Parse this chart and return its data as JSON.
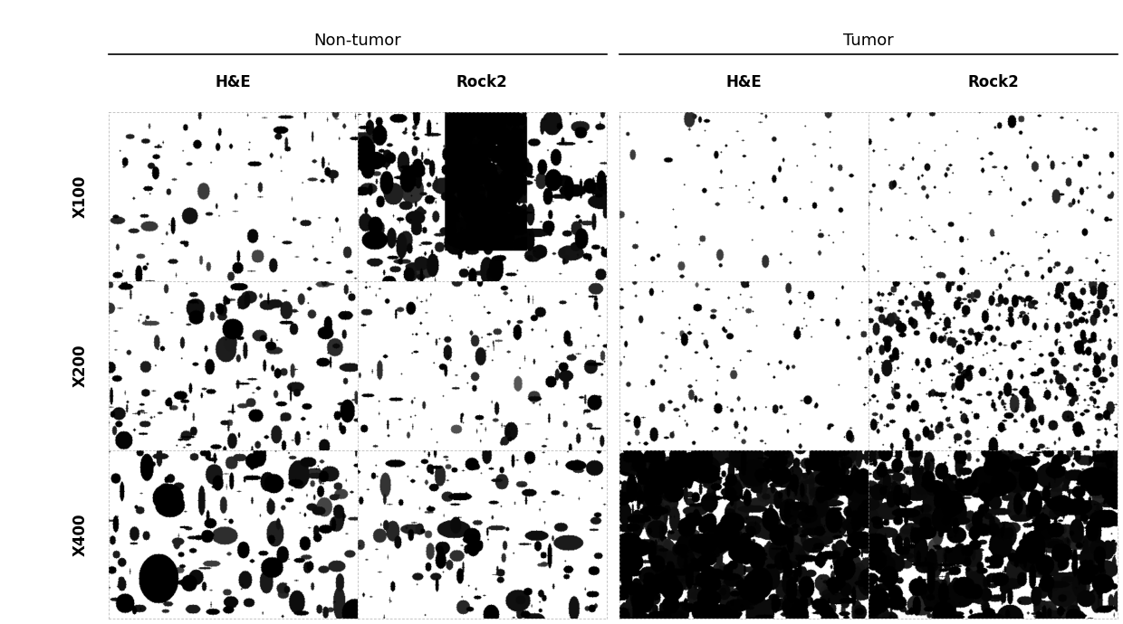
{
  "title_left": "Non-tumor",
  "title_right": "Tumor",
  "col_labels": [
    "H&E",
    "Rock2",
    "H&E",
    "Rock2"
  ],
  "row_labels": [
    "X100",
    "X200",
    "X400"
  ],
  "background_color": "#ffffff",
  "n_rows": 3,
  "n_cols": 4,
  "fig_width": 12.4,
  "fig_height": 6.9
}
